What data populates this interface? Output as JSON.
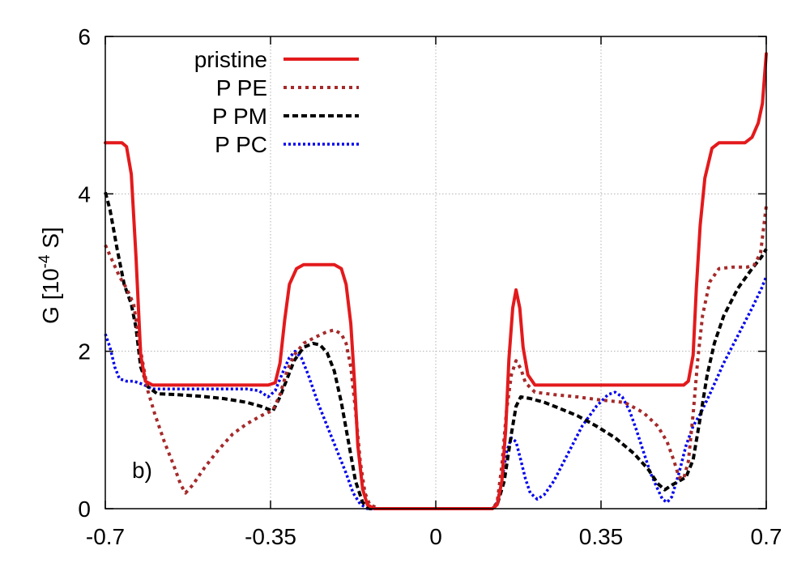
{
  "chart_data": {
    "type": "line",
    "title": "",
    "xlabel": "",
    "ylabel": {
      "prefix": "G [10",
      "exponent": "-4",
      "suffix": " S]"
    },
    "xlim": [
      -0.7,
      0.7
    ],
    "ylim": [
      0,
      6
    ],
    "x_ticks": [
      -0.7,
      -0.35,
      0,
      0.35,
      0.7
    ],
    "x_tick_labels": [
      "-0.7",
      "-0.35",
      "0",
      "0.35",
      "0.7"
    ],
    "y_ticks": [
      0,
      2,
      4,
      6
    ],
    "y_tick_labels": [
      "0",
      "2",
      "4",
      "6"
    ],
    "grid": true,
    "legend_position": "top-center",
    "panel_label": "b)",
    "series": [
      {
        "name": "pristine",
        "color": "#e31a1c",
        "dash": "solid",
        "points": [
          [
            -0.7,
            4.65
          ],
          [
            -0.665,
            4.65
          ],
          [
            -0.655,
            4.6
          ],
          [
            -0.645,
            4.25
          ],
          [
            -0.635,
            3.2
          ],
          [
            -0.625,
            1.95
          ],
          [
            -0.615,
            1.62
          ],
          [
            -0.6,
            1.57
          ],
          [
            -0.55,
            1.57
          ],
          [
            -0.4,
            1.57
          ],
          [
            -0.355,
            1.57
          ],
          [
            -0.34,
            1.6
          ],
          [
            -0.33,
            1.85
          ],
          [
            -0.32,
            2.4
          ],
          [
            -0.31,
            2.85
          ],
          [
            -0.295,
            3.05
          ],
          [
            -0.28,
            3.1
          ],
          [
            -0.215,
            3.1
          ],
          [
            -0.2,
            3.05
          ],
          [
            -0.19,
            2.85
          ],
          [
            -0.18,
            2.35
          ],
          [
            -0.172,
            1.6
          ],
          [
            -0.165,
            0.8
          ],
          [
            -0.155,
            0.25
          ],
          [
            -0.145,
            0.05
          ],
          [
            -0.13,
            0.0
          ],
          [
            0.12,
            0.0
          ],
          [
            0.13,
            0.05
          ],
          [
            0.14,
            0.35
          ],
          [
            0.148,
            1.0
          ],
          [
            0.155,
            1.9
          ],
          [
            0.163,
            2.55
          ],
          [
            0.17,
            2.78
          ],
          [
            0.178,
            2.55
          ],
          [
            0.185,
            2.05
          ],
          [
            0.195,
            1.7
          ],
          [
            0.21,
            1.57
          ],
          [
            0.3,
            1.57
          ],
          [
            0.45,
            1.57
          ],
          [
            0.525,
            1.57
          ],
          [
            0.535,
            1.62
          ],
          [
            0.545,
            1.95
          ],
          [
            0.552,
            2.8
          ],
          [
            0.56,
            3.6
          ],
          [
            0.57,
            4.2
          ],
          [
            0.585,
            4.58
          ],
          [
            0.6,
            4.65
          ],
          [
            0.655,
            4.65
          ],
          [
            0.67,
            4.72
          ],
          [
            0.683,
            4.9
          ],
          [
            0.692,
            5.15
          ],
          [
            0.7,
            5.78
          ]
        ]
      },
      {
        "name": "P PE",
        "color": "#a52a2a",
        "dash": "dotted",
        "points": [
          [
            -0.7,
            3.35
          ],
          [
            -0.685,
            3.15
          ],
          [
            -0.67,
            2.95
          ],
          [
            -0.655,
            2.8
          ],
          [
            -0.64,
            2.6
          ],
          [
            -0.625,
            2.0
          ],
          [
            -0.61,
            1.5
          ],
          [
            -0.595,
            1.2
          ],
          [
            -0.575,
            0.85
          ],
          [
            -0.555,
            0.55
          ],
          [
            -0.54,
            0.3
          ],
          [
            -0.53,
            0.2
          ],
          [
            -0.515,
            0.3
          ],
          [
            -0.49,
            0.52
          ],
          [
            -0.46,
            0.75
          ],
          [
            -0.43,
            0.95
          ],
          [
            -0.4,
            1.08
          ],
          [
            -0.37,
            1.18
          ],
          [
            -0.345,
            1.25
          ],
          [
            -0.33,
            1.45
          ],
          [
            -0.315,
            1.75
          ],
          [
            -0.3,
            1.95
          ],
          [
            -0.28,
            2.1
          ],
          [
            -0.255,
            2.18
          ],
          [
            -0.23,
            2.25
          ],
          [
            -0.215,
            2.27
          ],
          [
            -0.2,
            2.22
          ],
          [
            -0.19,
            2.1
          ],
          [
            -0.18,
            1.8
          ],
          [
            -0.17,
            1.25
          ],
          [
            -0.16,
            0.6
          ],
          [
            -0.15,
            0.2
          ],
          [
            -0.14,
            0.05
          ],
          [
            -0.12,
            0.0
          ],
          [
            0.12,
            0.0
          ],
          [
            0.13,
            0.08
          ],
          [
            0.14,
            0.55
          ],
          [
            0.15,
            1.25
          ],
          [
            0.16,
            1.7
          ],
          [
            0.17,
            1.88
          ],
          [
            0.18,
            1.78
          ],
          [
            0.19,
            1.6
          ],
          [
            0.21,
            1.48
          ],
          [
            0.25,
            1.45
          ],
          [
            0.3,
            1.42
          ],
          [
            0.35,
            1.38
          ],
          [
            0.4,
            1.35
          ],
          [
            0.44,
            1.22
          ],
          [
            0.47,
            1.05
          ],
          [
            0.49,
            0.85
          ],
          [
            0.505,
            0.6
          ],
          [
            0.515,
            0.4
          ],
          [
            0.525,
            0.38
          ],
          [
            0.535,
            0.6
          ],
          [
            0.545,
            1.2
          ],
          [
            0.555,
            1.9
          ],
          [
            0.565,
            2.45
          ],
          [
            0.58,
            2.88
          ],
          [
            0.6,
            3.05
          ],
          [
            0.63,
            3.07
          ],
          [
            0.66,
            3.07
          ],
          [
            0.675,
            3.1
          ],
          [
            0.688,
            3.25
          ],
          [
            0.7,
            3.85
          ]
        ]
      },
      {
        "name": "P PM",
        "color": "#000000",
        "dash": "dashed",
        "points": [
          [
            -0.7,
            4.02
          ],
          [
            -0.69,
            3.8
          ],
          [
            -0.675,
            3.3
          ],
          [
            -0.66,
            2.85
          ],
          [
            -0.645,
            2.6
          ],
          [
            -0.635,
            2.3
          ],
          [
            -0.625,
            1.8
          ],
          [
            -0.61,
            1.55
          ],
          [
            -0.59,
            1.46
          ],
          [
            -0.55,
            1.45
          ],
          [
            -0.5,
            1.43
          ],
          [
            -0.45,
            1.4
          ],
          [
            -0.4,
            1.35
          ],
          [
            -0.37,
            1.3
          ],
          [
            -0.345,
            1.24
          ],
          [
            -0.33,
            1.42
          ],
          [
            -0.315,
            1.65
          ],
          [
            -0.3,
            1.88
          ],
          [
            -0.28,
            2.05
          ],
          [
            -0.26,
            2.1
          ],
          [
            -0.245,
            2.08
          ],
          [
            -0.23,
            1.98
          ],
          [
            -0.215,
            1.75
          ],
          [
            -0.2,
            1.35
          ],
          [
            -0.185,
            0.85
          ],
          [
            -0.17,
            0.35
          ],
          [
            -0.155,
            0.08
          ],
          [
            -0.14,
            0.0
          ],
          [
            0.12,
            0.0
          ],
          [
            0.13,
            0.05
          ],
          [
            0.145,
            0.35
          ],
          [
            0.16,
            0.95
          ],
          [
            0.17,
            1.3
          ],
          [
            0.18,
            1.42
          ],
          [
            0.2,
            1.4
          ],
          [
            0.23,
            1.35
          ],
          [
            0.26,
            1.28
          ],
          [
            0.3,
            1.18
          ],
          [
            0.34,
            1.05
          ],
          [
            0.38,
            0.9
          ],
          [
            0.42,
            0.7
          ],
          [
            0.45,
            0.5
          ],
          [
            0.47,
            0.32
          ],
          [
            0.485,
            0.24
          ],
          [
            0.5,
            0.3
          ],
          [
            0.515,
            0.35
          ],
          [
            0.53,
            0.4
          ],
          [
            0.545,
            0.62
          ],
          [
            0.56,
            1.15
          ],
          [
            0.575,
            1.7
          ],
          [
            0.59,
            2.1
          ],
          [
            0.61,
            2.45
          ],
          [
            0.64,
            2.8
          ],
          [
            0.67,
            3.05
          ],
          [
            0.69,
            3.2
          ],
          [
            0.7,
            3.3
          ]
        ]
      },
      {
        "name": "P PC",
        "color": "#0000ee",
        "dash": "fine-dotted",
        "points": [
          [
            -0.7,
            2.22
          ],
          [
            -0.69,
            2.05
          ],
          [
            -0.68,
            1.8
          ],
          [
            -0.67,
            1.65
          ],
          [
            -0.655,
            1.62
          ],
          [
            -0.64,
            1.62
          ],
          [
            -0.62,
            1.58
          ],
          [
            -0.6,
            1.52
          ],
          [
            -0.55,
            1.52
          ],
          [
            -0.45,
            1.52
          ],
          [
            -0.4,
            1.52
          ],
          [
            -0.375,
            1.5
          ],
          [
            -0.355,
            1.42
          ],
          [
            -0.34,
            1.5
          ],
          [
            -0.325,
            1.72
          ],
          [
            -0.31,
            1.92
          ],
          [
            -0.298,
            2.0
          ],
          [
            -0.285,
            1.92
          ],
          [
            -0.27,
            1.7
          ],
          [
            -0.25,
            1.35
          ],
          [
            -0.23,
            1.05
          ],
          [
            -0.21,
            0.75
          ],
          [
            -0.19,
            0.45
          ],
          [
            -0.175,
            0.2
          ],
          [
            -0.16,
            0.06
          ],
          [
            -0.145,
            0.0
          ],
          [
            0.12,
            0.0
          ],
          [
            0.13,
            0.08
          ],
          [
            0.14,
            0.35
          ],
          [
            0.15,
            0.72
          ],
          [
            0.16,
            0.9
          ],
          [
            0.17,
            0.85
          ],
          [
            0.18,
            0.62
          ],
          [
            0.19,
            0.38
          ],
          [
            0.2,
            0.2
          ],
          [
            0.215,
            0.12
          ],
          [
            0.23,
            0.18
          ],
          [
            0.25,
            0.35
          ],
          [
            0.28,
            0.7
          ],
          [
            0.31,
            1.05
          ],
          [
            0.34,
            1.3
          ],
          [
            0.365,
            1.45
          ],
          [
            0.38,
            1.48
          ],
          [
            0.395,
            1.42
          ],
          [
            0.41,
            1.25
          ],
          [
            0.425,
            1.0
          ],
          [
            0.44,
            0.72
          ],
          [
            0.455,
            0.45
          ],
          [
            0.47,
            0.25
          ],
          [
            0.48,
            0.12
          ],
          [
            0.49,
            0.08
          ],
          [
            0.5,
            0.15
          ],
          [
            0.515,
            0.45
          ],
          [
            0.53,
            0.8
          ],
          [
            0.545,
            1.05
          ],
          [
            0.56,
            1.2
          ],
          [
            0.58,
            1.45
          ],
          [
            0.61,
            1.85
          ],
          [
            0.64,
            2.2
          ],
          [
            0.67,
            2.55
          ],
          [
            0.69,
            2.8
          ],
          [
            0.7,
            2.95
          ]
        ]
      }
    ]
  }
}
